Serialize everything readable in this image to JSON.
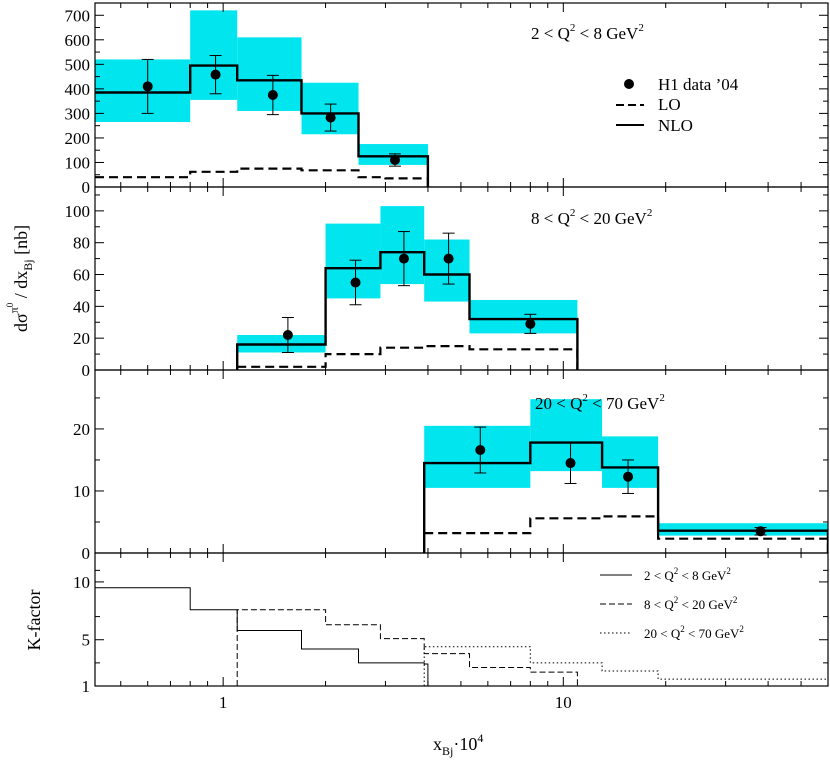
{
  "figure": {
    "xlabel_main": "x",
    "xlabel_sub": "Bj",
    "xlabel_suffix": "·10",
    "xlabel_sup": "4",
    "ylabel_prefix": "dσ",
    "ylabel_sup": "π",
    "ylabel_supsup": "0",
    "ylabel_mid": " / dx",
    "ylabel_sub": "Bj",
    "ylabel_suffix": " [nb]",
    "kfactor_label": "K-factor",
    "x_axis": {
      "type": "log",
      "range": [
        0.42,
        60
      ],
      "ticks": [
        1,
        10
      ],
      "tick_labels": [
        "1",
        "10"
      ]
    },
    "legend": {
      "data_label": "H1 data ’04",
      "lo_label": "LO",
      "nlo_label": "NLO"
    },
    "klegend": [
      {
        "pre": "2   < Q",
        "sup": "2",
        "post": " < 8  GeV",
        "sup2": "2",
        "style": "solid"
      },
      {
        "pre": "8 < Q",
        "sup": "2",
        "post": " < 20  GeV",
        "sup2": "2",
        "style": "dashed"
      },
      {
        "pre": "20 < Q",
        "sup": "2",
        "post": " < 70  GeV",
        "sup2": "2",
        "style": "dotted"
      }
    ],
    "colors": {
      "band": "#00e5ee",
      "line": "#000000"
    }
  },
  "chart_data": [
    {
      "type": "bar",
      "title_pre": "2 < Q",
      "title_sup": "2",
      "title_post": " < 8 GeV",
      "title_sup2": "2",
      "ylim": [
        0,
        750
      ],
      "yticks": [
        0,
        100,
        200,
        300,
        400,
        500,
        600,
        700
      ],
      "bin_edges": [
        0.42,
        0.8,
        1.1,
        1.7,
        2.5,
        4.0
      ],
      "nlo": [
        385,
        495,
        435,
        300,
        125
      ],
      "nlo_band_low": [
        265,
        355,
        310,
        215,
        90
      ],
      "nlo_band_high": [
        520,
        720,
        610,
        425,
        175
      ],
      "lo_edges": [
        0.42,
        0.8,
        1.1,
        1.7,
        2.5,
        3.0,
        4.0
      ],
      "lo": [
        40,
        62,
        75,
        68,
        40,
        35
      ],
      "data": [
        {
          "x": 0.6,
          "y": 410,
          "err": 110
        },
        {
          "x": 0.95,
          "y": 458,
          "err": 78
        },
        {
          "x": 1.4,
          "y": 375,
          "err": 80
        },
        {
          "x": 2.07,
          "y": 283,
          "err": 55
        },
        {
          "x": 3.2,
          "y": 110,
          "err": 25
        }
      ]
    },
    {
      "type": "bar",
      "title_pre": "8 < Q",
      "title_sup": "2",
      "title_post": " < 20 GeV",
      "title_sup2": "2",
      "ylim": [
        0,
        115
      ],
      "yticks": [
        0,
        20,
        40,
        60,
        80,
        100
      ],
      "bin_edges": [
        1.1,
        2.0,
        2.9,
        3.9,
        5.3,
        11.0
      ],
      "nlo": [
        16,
        64,
        74,
        60,
        32
      ],
      "nlo_band_low": [
        11,
        45,
        54,
        43,
        23
      ],
      "nlo_band_high": [
        22,
        92,
        103,
        82,
        44
      ],
      "lo_edges": [
        1.1,
        2.0,
        2.9,
        3.9,
        5.3,
        11.0
      ],
      "lo": [
        2,
        10,
        14,
        15,
        13
      ],
      "data": [
        {
          "x": 1.55,
          "y": 22,
          "err": 11
        },
        {
          "x": 2.45,
          "y": 55,
          "err": 14
        },
        {
          "x": 3.4,
          "y": 70,
          "err": 17
        },
        {
          "x": 4.6,
          "y": 70,
          "err": 16
        },
        {
          "x": 8.0,
          "y": 29,
          "err": 6
        }
      ]
    },
    {
      "type": "bar",
      "title_pre": "20 < Q",
      "title_sup": "2",
      "title_post": " < 70 GeV",
      "title_sup2": "2",
      "ylim": [
        0,
        29.5
      ],
      "yticks": [
        0,
        10,
        20
      ],
      "bin_edges": [
        3.9,
        8.0,
        13.0,
        19.0,
        60.0
      ],
      "nlo": [
        14.5,
        17.8,
        13.8,
        3.6
      ],
      "nlo_band_low": [
        10.5,
        13.2,
        10.5,
        2.8
      ],
      "nlo_band_high": [
        20.5,
        24.8,
        18.8,
        4.8
      ],
      "lo_edges": [
        3.9,
        8.0,
        13.0,
        19.0,
        60.0
      ],
      "lo": [
        3.2,
        5.6,
        5.9,
        2.3
      ],
      "data": [
        {
          "x": 5.7,
          "y": 16.6,
          "err": 3.7
        },
        {
          "x": 10.5,
          "y": 14.5,
          "err": 3.3
        },
        {
          "x": 15.5,
          "y": 12.3,
          "err": 2.7
        },
        {
          "x": 38.0,
          "y": 3.5,
          "err": 0.6
        }
      ]
    },
    {
      "type": "line",
      "ylim": [
        1,
        12.5
      ],
      "yticks": [
        1,
        5,
        10
      ],
      "series": [
        {
          "style": "solid",
          "edges": [
            0.42,
            0.8,
            1.1,
            1.7,
            2.5,
            3.9,
            4.0
          ],
          "values": [
            9.5,
            7.6,
            5.8,
            4.2,
            3.0,
            2.9
          ]
        },
        {
          "style": "dashed",
          "edges": [
            1.1,
            2.0,
            2.9,
            3.9,
            5.3,
            8.0,
            11.0
          ],
          "values": [
            7.6,
            6.3,
            5.1,
            3.8,
            2.6,
            2.2
          ]
        },
        {
          "style": "dotted",
          "edges": [
            3.9,
            8.0,
            13.0,
            19.0,
            60.0
          ],
          "values": [
            4.4,
            3.0,
            2.3,
            1.6
          ]
        }
      ]
    }
  ]
}
